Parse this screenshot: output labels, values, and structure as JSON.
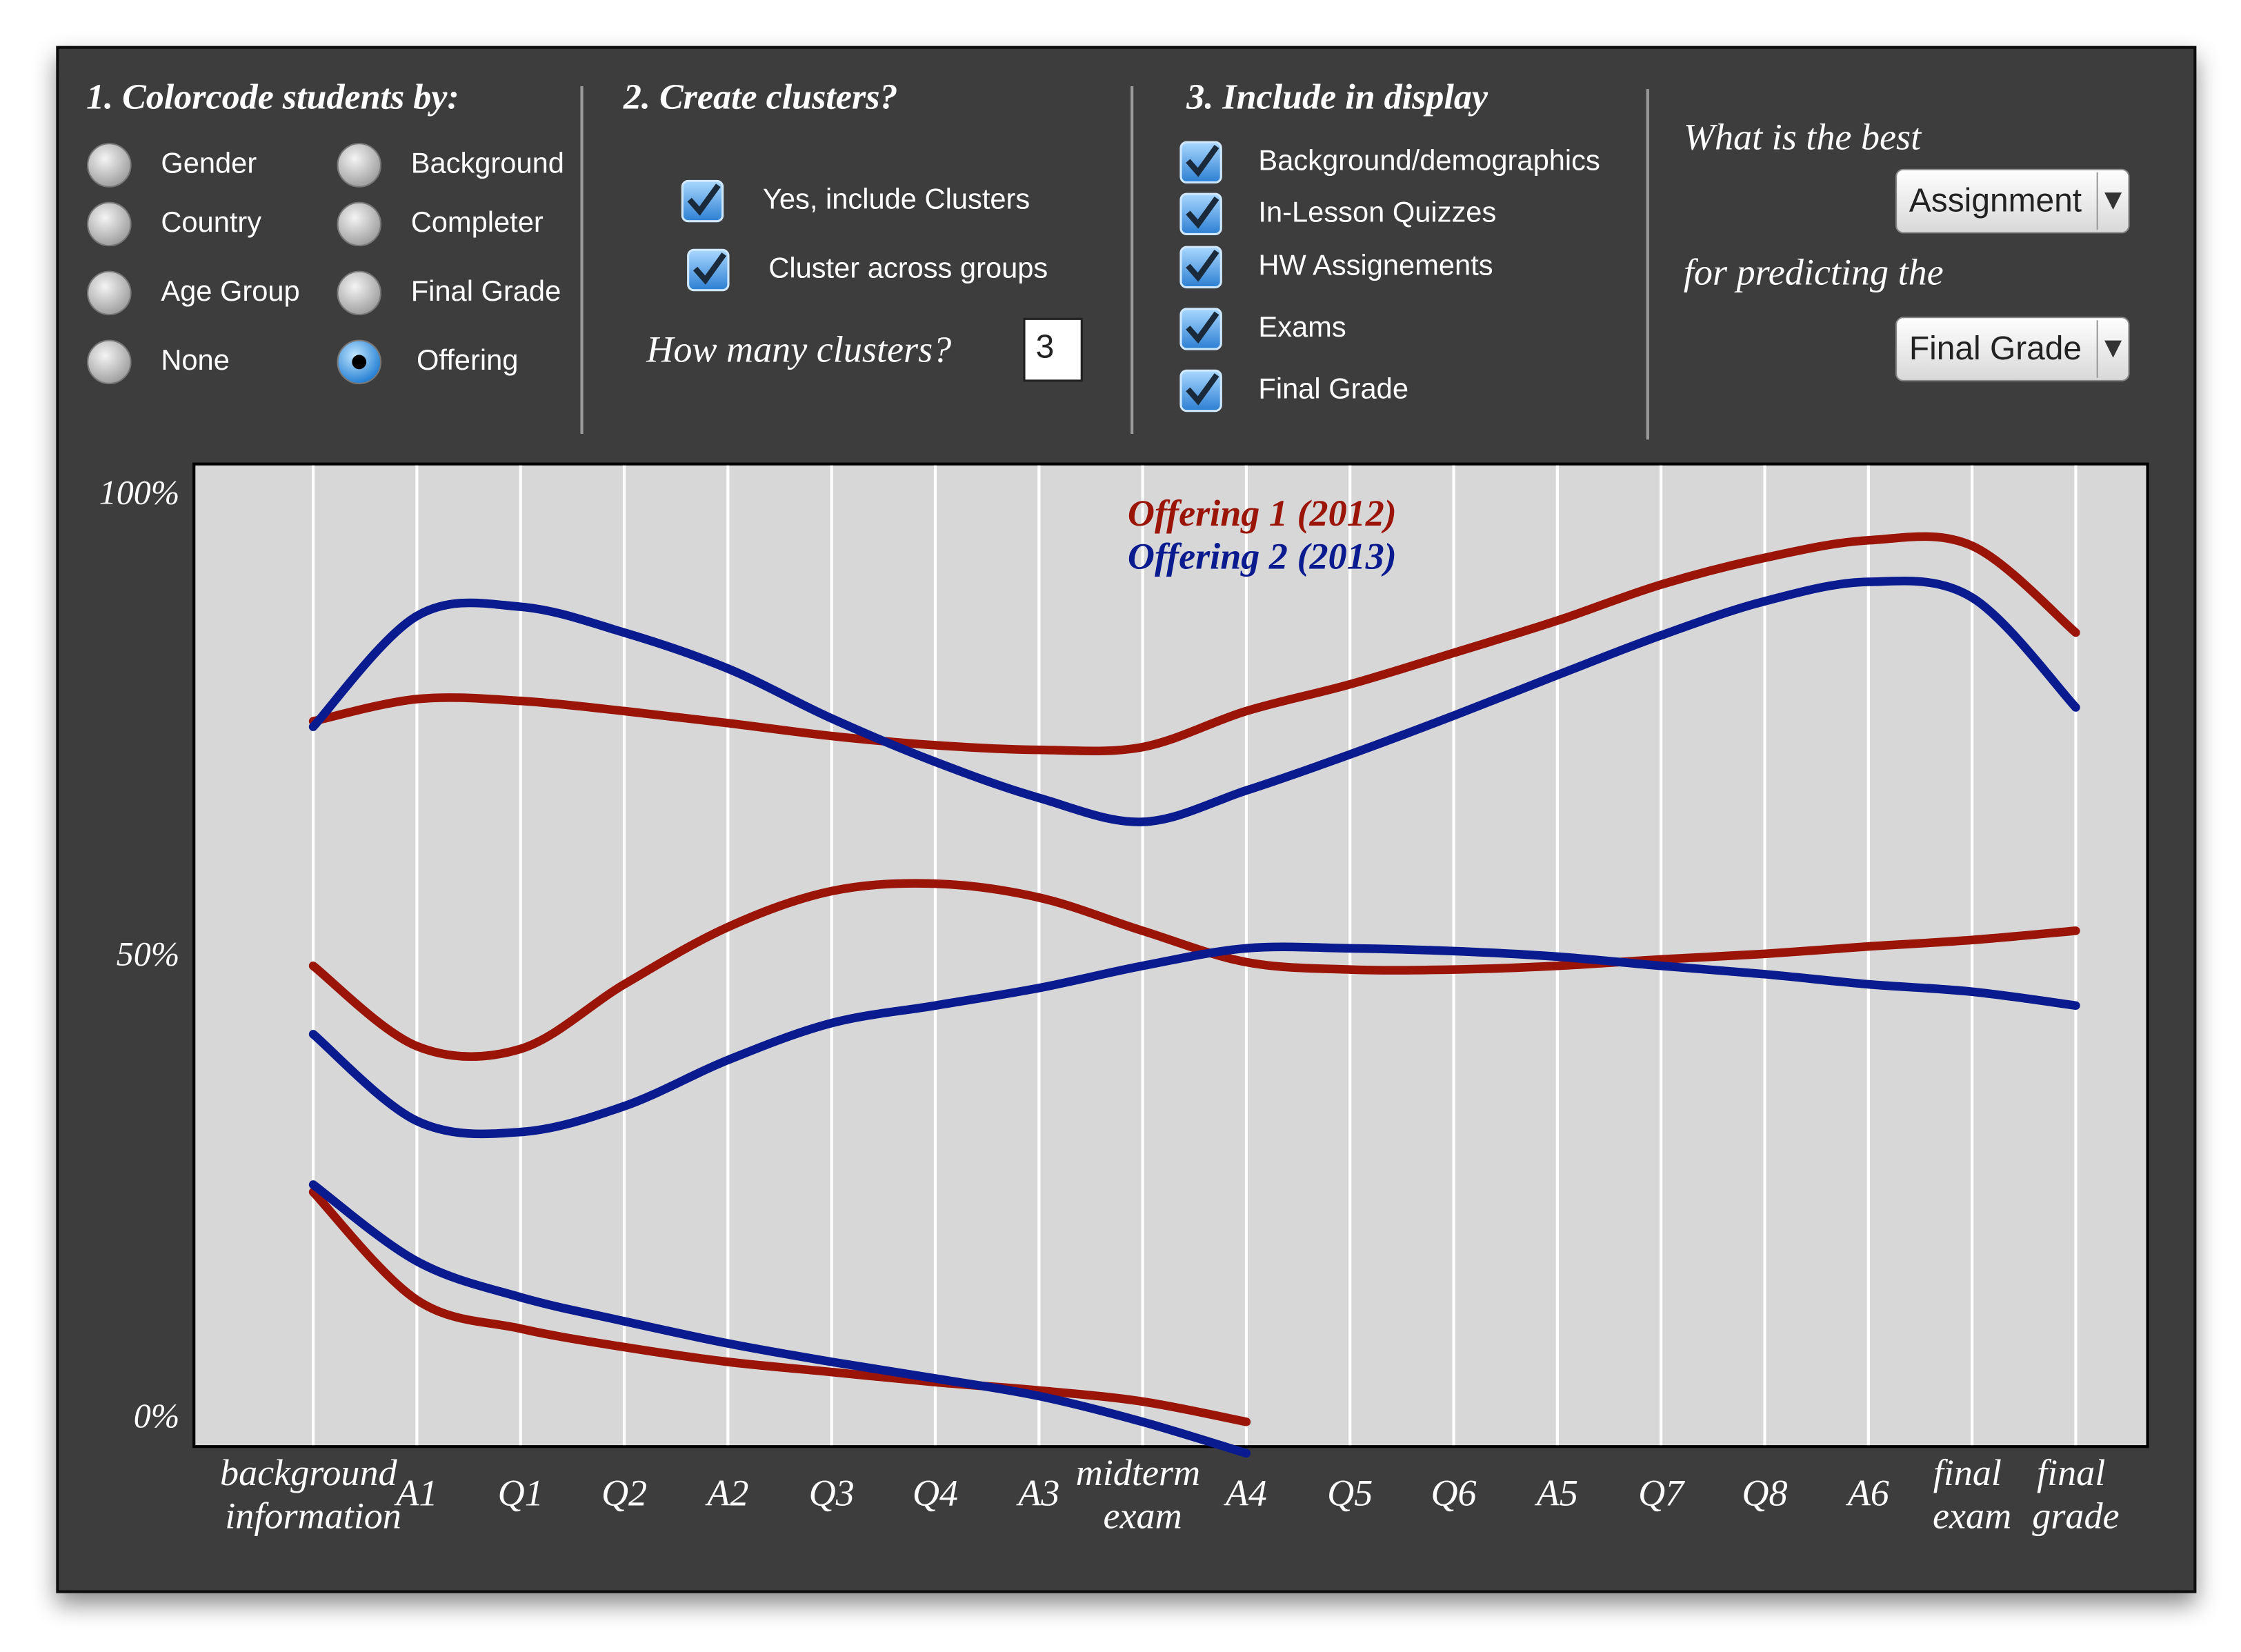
{
  "controls": {
    "colorcode": {
      "title": "1. Colorcode students by:",
      "options": [
        {
          "label": "Gender",
          "selected": false
        },
        {
          "label": "Background",
          "selected": false
        },
        {
          "label": "Country",
          "selected": false
        },
        {
          "label": "Completer",
          "selected": false
        },
        {
          "label": "Age Group",
          "selected": false
        },
        {
          "label": "Final Grade",
          "selected": false
        },
        {
          "label": "None",
          "selected": false
        },
        {
          "label": "Offering",
          "selected": true
        }
      ]
    },
    "clusters": {
      "title": "2. Create clusters?",
      "options": [
        {
          "label": "Yes, include Clusters",
          "checked": true
        },
        {
          "label": "Cluster across groups",
          "checked": true
        }
      ],
      "prompt": "How many clusters?",
      "value": 3
    },
    "display": {
      "title": "3. Include in display",
      "options": [
        {
          "label": "Background/demographics",
          "checked": true
        },
        {
          "label": "In-Lesson Quizzes",
          "checked": true
        },
        {
          "label": "HW Assignements",
          "checked": true
        },
        {
          "label": "Exams",
          "checked": true
        },
        {
          "label": "Final Grade",
          "checked": true
        }
      ]
    },
    "predict": {
      "text1": "What is the best",
      "select1": "Assignment",
      "text2": "for predicting the",
      "select2": "Final Grade"
    }
  },
  "chart_data": {
    "type": "line",
    "categories": [
      "background information",
      "A1",
      "Q1",
      "Q2",
      "A2",
      "Q3",
      "Q4",
      "A3",
      "midterm exam",
      "A4",
      "Q5",
      "Q6",
      "A5",
      "Q7",
      "Q8",
      "A6",
      "final exam",
      "final grade"
    ],
    "series": [
      {
        "name": "Offering 1 (2012)",
        "color": "#9b1408",
        "clusters": [
          [
            75.6,
            78,
            77.8,
            76.7,
            75.4,
            74,
            73,
            72.5,
            72.8,
            76.7,
            79.6,
            83,
            86.5,
            90.4,
            93.3,
            95.2,
            94.6,
            85.2
          ],
          [
            49.1,
            40.4,
            40.1,
            47.1,
            53.3,
            57.2,
            58,
            56.5,
            52.9,
            49.5,
            48.7,
            48.7,
            49.1,
            49.8,
            50.4,
            51.2,
            51.9,
            52.9
          ],
          [
            24.6,
            12.9,
            9.8,
            7.8,
            6.2,
            5.1,
            4,
            3.1,
            1.9,
            -0.3,
            null,
            null,
            null,
            null,
            null,
            null,
            null,
            null
          ]
        ]
      },
      {
        "name": "Offering 2 (2013)",
        "color": "#0a1a8f",
        "clusters": [
          [
            75,
            87,
            88,
            85.2,
            81.3,
            75.9,
            71.2,
            67.3,
            64.7,
            68.1,
            72,
            76.2,
            80.6,
            84.9,
            88.6,
            90.7,
            89,
            77.1
          ],
          [
            41.7,
            32.3,
            31.1,
            33.9,
            38.9,
            42.9,
            44.8,
            46.7,
            49.1,
            51,
            51,
            50.7,
            50.1,
            49.1,
            48.2,
            47.1,
            46.3,
            44.8
          ],
          [
            25.4,
            17.1,
            13.2,
            10.6,
            8.2,
            6.2,
            4.4,
            2.5,
            -0.3,
            -3.7,
            null,
            null,
            null,
            null,
            null,
            null,
            null,
            null
          ]
        ]
      }
    ],
    "ylim": [
      -5,
      103
    ],
    "yticks": [
      {
        "value": 100,
        "label": "100%"
      },
      {
        "value": 50,
        "label": "50%"
      },
      {
        "value": 0,
        "label": "0%"
      }
    ],
    "grid": true
  }
}
